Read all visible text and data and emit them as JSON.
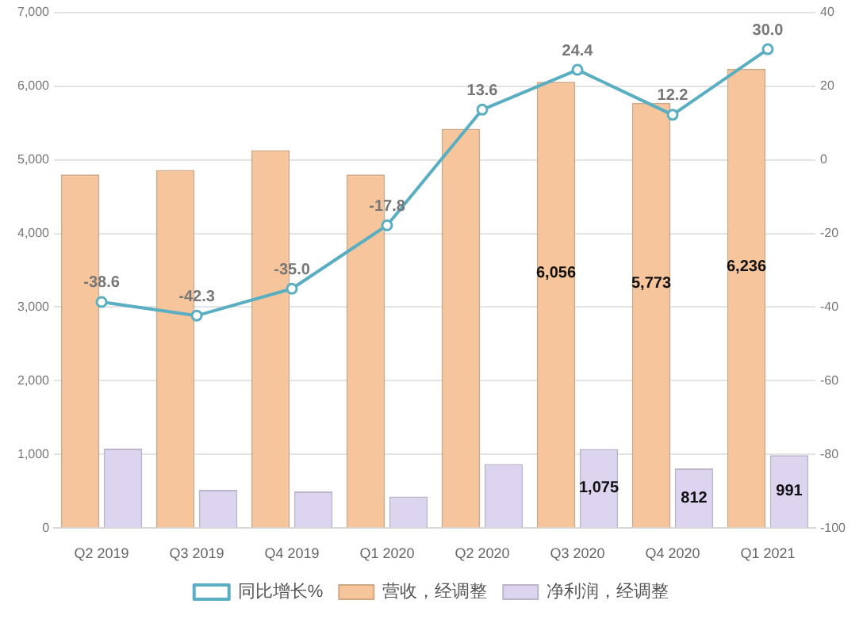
{
  "chart_data": {
    "type": "bar",
    "categories": [
      "Q2 2019",
      "Q3 2019",
      "Q4 2019",
      "Q1 2020",
      "Q2 2020",
      "Q3 2020",
      "Q4 2020",
      "Q1 2021"
    ],
    "series": [
      {
        "name": "营收，经调整",
        "color": "#f7c59b",
        "values": [
          4800,
          4860,
          5130,
          4800,
          5420,
          6056,
          5773,
          6236
        ],
        "value_labels": [
          null,
          null,
          null,
          null,
          null,
          "6,056",
          "5,773",
          "6,236"
        ]
      },
      {
        "name": "净利润，经调整",
        "color": "#ddd5f0",
        "values": [
          1080,
          520,
          500,
          430,
          870,
          1075,
          812,
          991
        ],
        "value_labels": [
          null,
          null,
          null,
          null,
          null,
          "1,075",
          "812",
          "991"
        ]
      },
      {
        "name": "同比增长%",
        "type": "line",
        "axis": "y2",
        "color": "#5aaec2",
        "values": [
          -38.6,
          -42.3,
          -35.0,
          -17.8,
          13.6,
          24.4,
          12.2,
          30.0
        ],
        "value_labels": [
          "-38.6",
          "-42.3",
          "-35.0",
          "-17.8",
          "13.6",
          "24.4",
          "12.2",
          "30.0"
        ]
      }
    ],
    "ylim": [
      0,
      7000
    ],
    "yticks": [
      {
        "value": 0,
        "label": "0"
      },
      {
        "value": 1000,
        "label": "1,000"
      },
      {
        "value": 2000,
        "label": "2,000"
      },
      {
        "value": 3000,
        "label": "3,000"
      },
      {
        "value": 4000,
        "label": "4,000"
      },
      {
        "value": 5000,
        "label": "5,000"
      },
      {
        "value": 6000,
        "label": "6,000"
      },
      {
        "value": 7000,
        "label": "7,000"
      }
    ],
    "y2lim": [
      -100,
      40
    ],
    "y2ticks": [
      -100,
      -80,
      -60,
      -40,
      -20,
      0,
      20,
      40
    ],
    "grid": "y",
    "legend": "bottom",
    "marker": "circle",
    "line_style": "solid"
  }
}
